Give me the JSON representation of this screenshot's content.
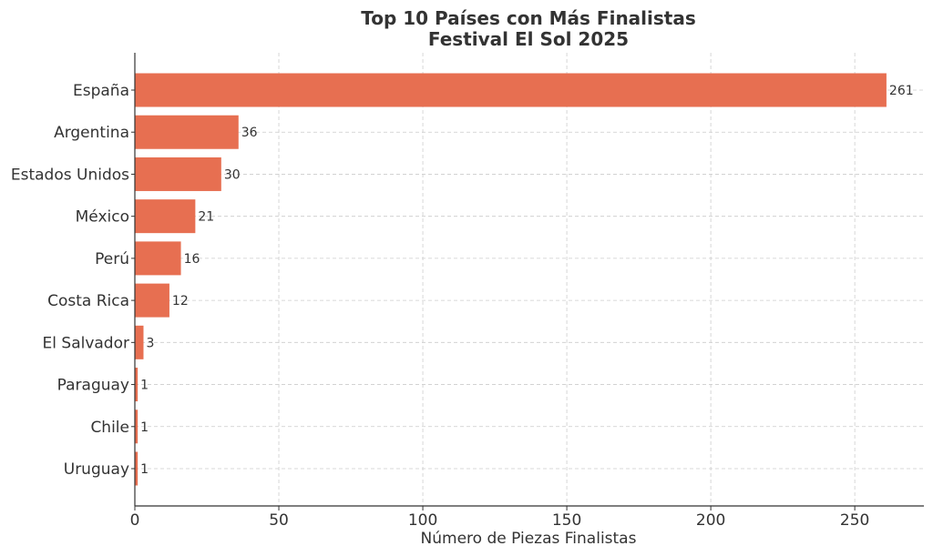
{
  "chart_data": {
    "type": "bar",
    "orientation": "horizontal",
    "title_lines": [
      "Top 10 Países con Más Finalistas",
      "Festival El Sol 2025"
    ],
    "xlabel": "Número de Piezas Finalistas",
    "ylabel": "",
    "categories": [
      "España",
      "Argentina",
      "Estados Unidos",
      "México",
      "Perú",
      "Costa Rica",
      "El Salvador",
      "Paraguay",
      "Chile",
      "Uruguay"
    ],
    "values": [
      261,
      36,
      30,
      21,
      16,
      12,
      3,
      1,
      1,
      1
    ],
    "xlim": [
      0,
      274
    ],
    "xticks": [
      0,
      50,
      100,
      150,
      200,
      250
    ],
    "grid": true,
    "colors": {
      "bar": "#E76F51",
      "grid": "#cccccc",
      "axis": "#333333",
      "text": "#333333"
    }
  }
}
